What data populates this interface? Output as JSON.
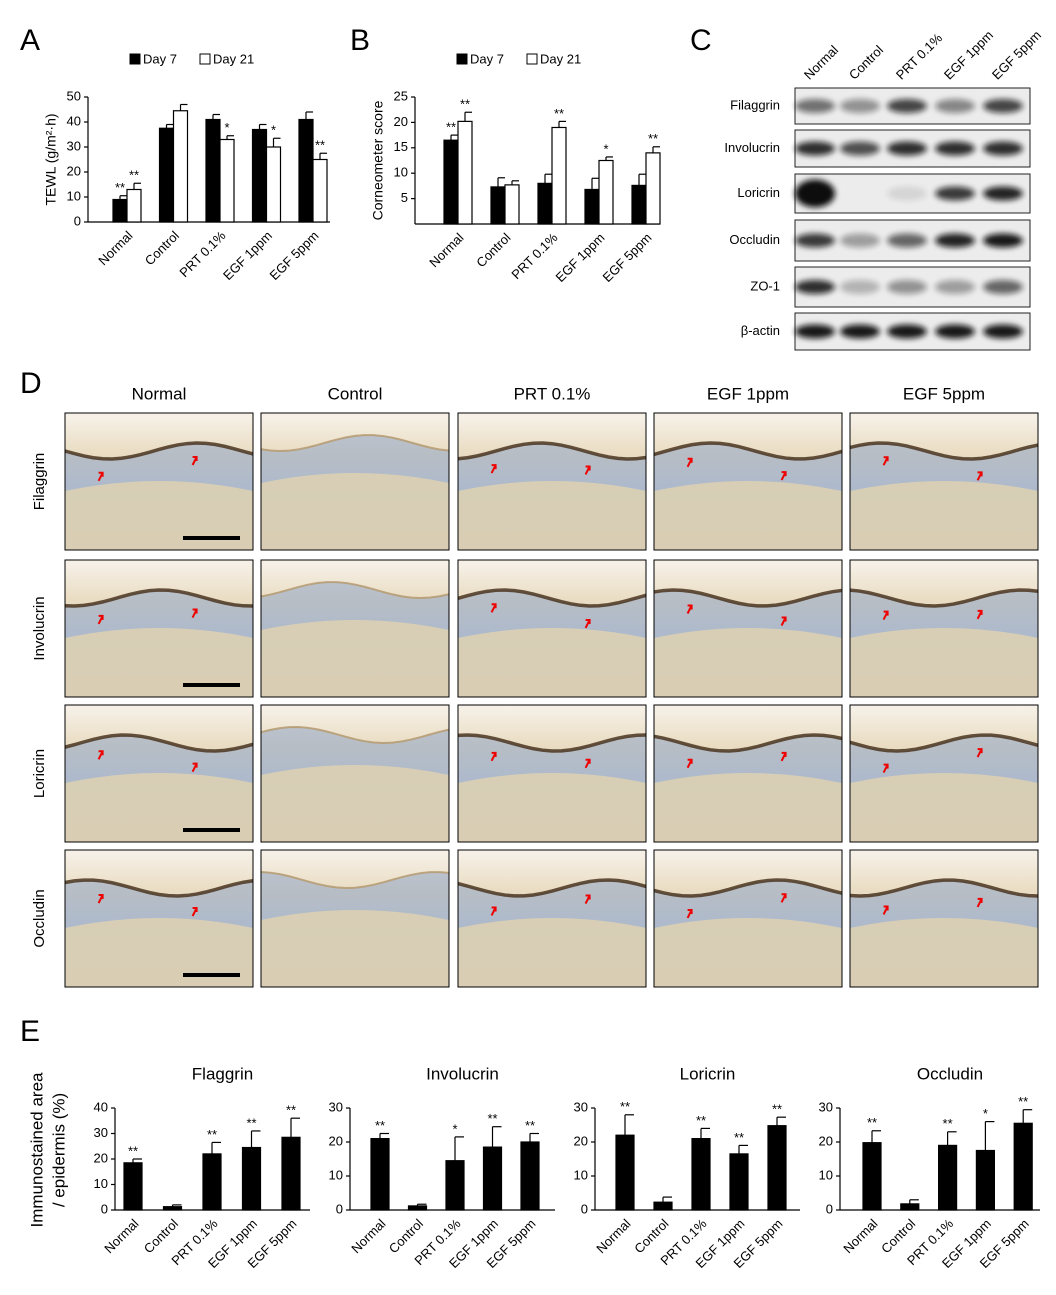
{
  "chart_data": [
    {
      "type": "bar",
      "panel": "A",
      "ylabel": "TEWL (g/m²·h)",
      "categories": [
        "Normal",
        "Control",
        "PRT 0.1%",
        "EGF 1ppm",
        "EGF 5ppm"
      ],
      "ylim": [
        0,
        50
      ],
      "yticks": [
        0,
        10,
        20,
        30,
        40,
        50
      ],
      "series": [
        {
          "name": "Day 7",
          "color": "#000000",
          "values": [
            9,
            37.5,
            41,
            37,
            41
          ],
          "errors": [
            1.5,
            1.5,
            2,
            2,
            3
          ],
          "annotations": [
            "**",
            null,
            null,
            null,
            null
          ]
        },
        {
          "name": "Day 21",
          "color": "#ffffff",
          "values": [
            13,
            44.5,
            33,
            30,
            25
          ],
          "errors": [
            2.5,
            2.5,
            1.5,
            3.5,
            2.5
          ],
          "annotations": [
            "**",
            null,
            "*",
            "*",
            "**"
          ]
        }
      ]
    },
    {
      "type": "bar",
      "panel": "B",
      "ylabel": "Corneometer score",
      "categories": [
        "Normal",
        "Control",
        "PRT 0.1%",
        "EGF 1ppm",
        "EGF 5ppm"
      ],
      "ylim": [
        0,
        25
      ],
      "yticks": [
        5,
        10,
        15,
        20,
        25
      ],
      "series": [
        {
          "name": "Day 7",
          "color": "#000000",
          "values": [
            16.5,
            7.3,
            8,
            6.8,
            7.6
          ],
          "errors": [
            1,
            1.8,
            1.8,
            2.2,
            2.2
          ],
          "annotations": [
            "**",
            null,
            null,
            null,
            null
          ]
        },
        {
          "name": "Day 21",
          "color": "#ffffff",
          "values": [
            20.2,
            7.7,
            19,
            12.5,
            14
          ],
          "errors": [
            1.8,
            0.8,
            1.2,
            0.7,
            1.2
          ],
          "annotations": [
            "**",
            null,
            "**",
            "*",
            "**"
          ]
        }
      ]
    },
    {
      "type": "bar",
      "title": "Flaggrin",
      "categories": [
        "Normal",
        "Control",
        "PRT 0.1%",
        "EGF 1ppm",
        "EGF 5ppm"
      ],
      "ylim": [
        0,
        40
      ],
      "yticks": [
        0,
        10,
        20,
        30,
        40
      ],
      "color": "#000000",
      "values": [
        18.5,
        1.3,
        22,
        24.5,
        28.5
      ],
      "errors": [
        1.5,
        0.7,
        4.5,
        6.5,
        7.5
      ],
      "annotations": [
        "**",
        null,
        "**",
        "**",
        "**"
      ]
    },
    {
      "type": "bar",
      "title": "Involucrin",
      "categories": [
        "Normal",
        "Control",
        "PRT 0.1%",
        "EGF 1ppm",
        "EGF 5ppm"
      ],
      "ylim": [
        0,
        30
      ],
      "yticks": [
        0,
        10,
        20,
        30
      ],
      "color": "#000000",
      "values": [
        21,
        1.2,
        14.5,
        18.5,
        20
      ],
      "errors": [
        1.5,
        0.5,
        7,
        6,
        2.5
      ],
      "annotations": [
        "**",
        null,
        "*",
        "**",
        "**"
      ]
    },
    {
      "type": "bar",
      "title": "Loricrin",
      "categories": [
        "Normal",
        "Control",
        "PRT 0.1%",
        "EGF 1ppm",
        "EGF 5ppm"
      ],
      "ylim": [
        0,
        30
      ],
      "yticks": [
        0,
        10,
        20,
        30
      ],
      "color": "#000000",
      "values": [
        22,
        2.3,
        21,
        16.5,
        24.8
      ],
      "errors": [
        6,
        1.5,
        3,
        2.5,
        2.5
      ],
      "annotations": [
        "**",
        null,
        "**",
        "**",
        "**"
      ]
    },
    {
      "type": "bar",
      "title": "Occludin",
      "categories": [
        "Normal",
        "Control",
        "PRT 0.1%",
        "EGF 1ppm",
        "EGF 5ppm"
      ],
      "ylim": [
        0,
        30
      ],
      "yticks": [
        0,
        10,
        20,
        30
      ],
      "color": "#000000",
      "values": [
        19.8,
        1.8,
        19,
        17.5,
        25.5
      ],
      "errors": [
        3.5,
        1.2,
        4,
        8.5,
        4
      ],
      "annotations": [
        "**",
        null,
        "**",
        "*",
        "**"
      ]
    }
  ],
  "panels": {
    "letters": [
      "A",
      "B",
      "C",
      "D",
      "E"
    ],
    "C": {
      "lanes": [
        "Normal",
        "Control",
        "PRT 0.1%",
        "EGF 1ppm",
        "EGF 5ppm"
      ],
      "rows": [
        "Filaggrin",
        "Involucrin",
        "Loricrin",
        "Occludin",
        "ZO-1",
        "β-actin"
      ]
    },
    "D": {
      "columns": [
        "Normal",
        "Control",
        "PRT 0.1%",
        "EGF 1ppm",
        "EGF 5ppm"
      ],
      "rows": [
        "Filaggrin",
        "Involucrin",
        "Loricrin",
        "Occludin"
      ]
    },
    "E": {
      "ylabel": [
        "Immunostained area",
        "/ epidermis (%)"
      ]
    }
  }
}
